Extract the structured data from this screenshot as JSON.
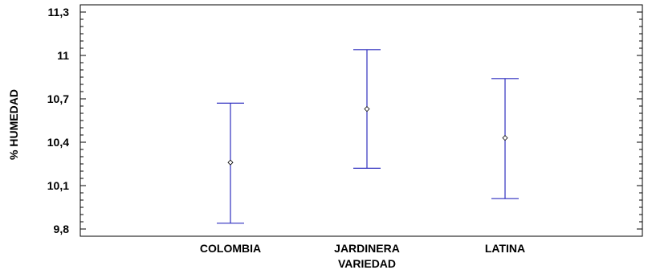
{
  "chart_data": {
    "type": "interval",
    "xlabel": "VARIEDAD",
    "ylabel": "% HUMEDAD",
    "categories": [
      "COLOMBIA",
      "JARDINERA",
      "LATINA"
    ],
    "ylim": [
      9.75,
      11.35
    ],
    "yticks": [
      9.8,
      10.1,
      10.4,
      10.7,
      11,
      11.3
    ],
    "ytick_labels": [
      "9,8",
      "10,1",
      "10,4",
      "10,7",
      "11",
      "11,3"
    ],
    "y_minor_step": 0.05,
    "series": [
      {
        "means": [
          10.26,
          10.63,
          10.43
        ],
        "lower": [
          9.84,
          10.22,
          10.01
        ],
        "upper": [
          10.67,
          11.04,
          10.84
        ]
      }
    ],
    "colors": {
      "interval": "#2f2fbf",
      "axis": "#000000",
      "marker": "#000000"
    },
    "grid": false
  }
}
